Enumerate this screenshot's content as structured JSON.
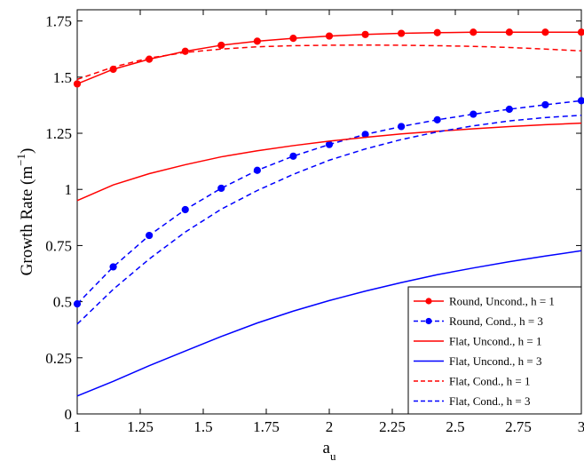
{
  "chart_data": {
    "type": "line",
    "title": "",
    "xlabel": "a",
    "xlabel_subscript": "u",
    "ylabel": "Growth Rate (m",
    "ylabel_superscript": "−1",
    "ylabel_close": ")",
    "xlim": [
      1,
      3
    ],
    "ylim": [
      0,
      1.8
    ],
    "grid": false,
    "legend_position": "bottom-right",
    "x_ticks": [
      1,
      1.25,
      1.5,
      1.75,
      2,
      2.25,
      2.5,
      2.75,
      3
    ],
    "x_tick_labels": [
      "1",
      "1.25",
      "1.5",
      "1.75",
      "2",
      "2.25",
      "2.5",
      "2.75",
      "3"
    ],
    "y_ticks": [
      0,
      0.25,
      0.5,
      0.75,
      1,
      1.25,
      1.5,
      1.75
    ],
    "y_tick_labels": [
      "0",
      "0.25",
      "0.5",
      "0.75",
      "1",
      "1.25",
      "1.5",
      "1.75"
    ],
    "x": [
      1,
      1.1429,
      1.2857,
      1.4286,
      1.5714,
      1.7143,
      1.8571,
      2,
      2.1429,
      2.2857,
      2.4286,
      2.5714,
      2.7143,
      2.8571,
      3
    ],
    "series": [
      {
        "name": "Round, Uncond., h = 1",
        "color": "#ff0000",
        "dash": "solid",
        "marker": true,
        "values": [
          1.47,
          1.535,
          1.58,
          1.615,
          1.642,
          1.66,
          1.673,
          1.683,
          1.69,
          1.695,
          1.698,
          1.7,
          1.7,
          1.7,
          1.7
        ]
      },
      {
        "name": "Round, Cond., h = 3",
        "color": "#0000ff",
        "dash": "dashed",
        "marker": true,
        "values": [
          0.49,
          0.655,
          0.795,
          0.91,
          1.005,
          1.085,
          1.148,
          1.2,
          1.245,
          1.28,
          1.31,
          1.335,
          1.357,
          1.377,
          1.395
        ]
      },
      {
        "name": "Flat, Uncond., h = 1",
        "color": "#ff0000",
        "dash": "solid",
        "marker": false,
        "values": [
          0.95,
          1.02,
          1.07,
          1.11,
          1.145,
          1.172,
          1.195,
          1.215,
          1.232,
          1.247,
          1.259,
          1.27,
          1.28,
          1.288,
          1.295
        ]
      },
      {
        "name": "Flat, Uncond., h = 3",
        "color": "#0000ff",
        "dash": "solid",
        "marker": false,
        "values": [
          0.08,
          0.145,
          0.215,
          0.28,
          0.345,
          0.405,
          0.458,
          0.505,
          0.547,
          0.585,
          0.62,
          0.65,
          0.678,
          0.703,
          0.727
        ]
      },
      {
        "name": "Flat, Cond., h = 1",
        "color": "#ff0000",
        "dash": "dashed",
        "marker": false,
        "values": [
          1.49,
          1.545,
          1.585,
          1.61,
          1.625,
          1.635,
          1.64,
          1.642,
          1.643,
          1.642,
          1.64,
          1.637,
          1.632,
          1.625,
          1.617
        ]
      },
      {
        "name": "Flat, Cond., h = 3",
        "color": "#0000ff",
        "dash": "dashed",
        "marker": false,
        "values": [
          0.4,
          0.555,
          0.69,
          0.81,
          0.912,
          0.995,
          1.067,
          1.13,
          1.18,
          1.222,
          1.256,
          1.283,
          1.305,
          1.32,
          1.33
        ]
      }
    ]
  }
}
